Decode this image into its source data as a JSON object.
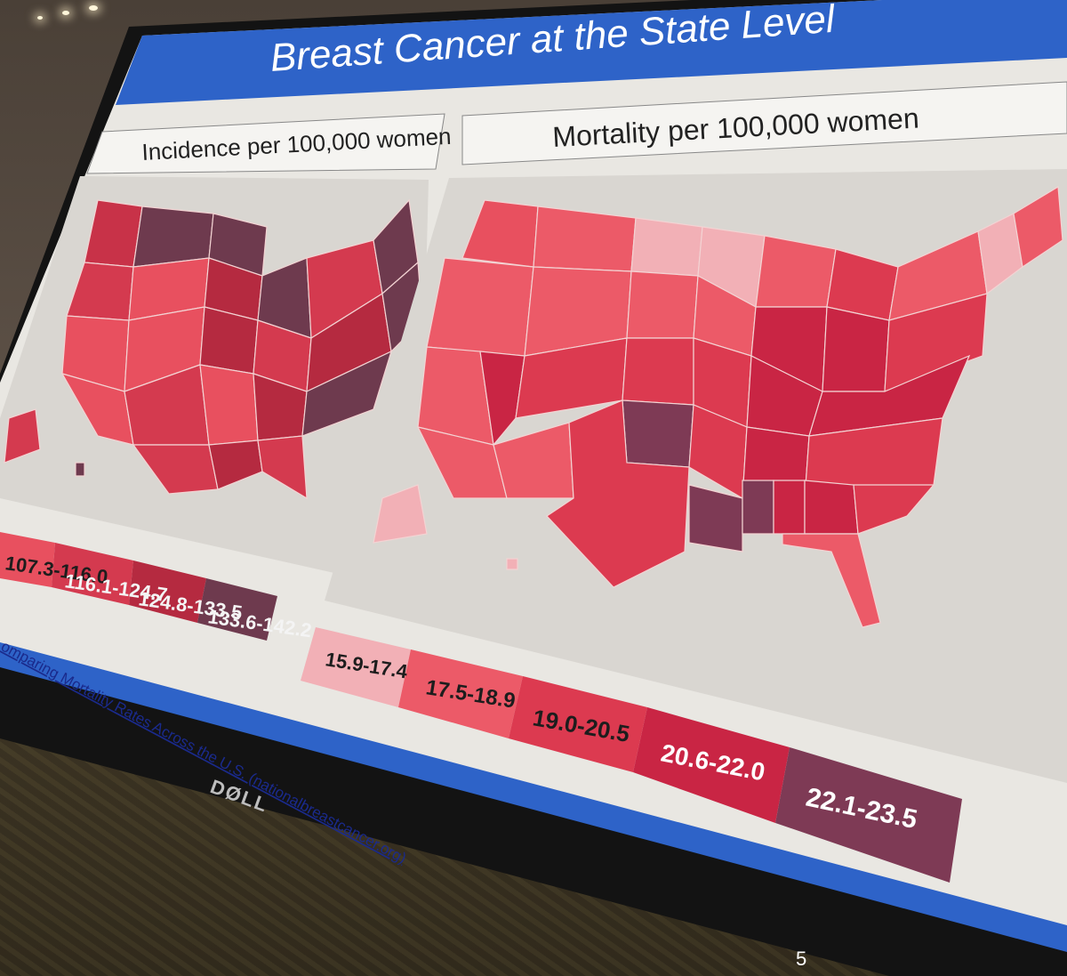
{
  "slide": {
    "title": "Breast Cancer at the State Level",
    "page_number": "5",
    "source_link": "omparing Mortality Rates Across the U.S. (nationalbreastcancer.org)"
  },
  "monitor": {
    "brand": "DØLL"
  },
  "incidence_map": {
    "title": "Incidence per 100,000 women",
    "legend": [
      {
        "label": "107.3-116.0",
        "color": "#e8505f"
      },
      {
        "label": "116.1-124.7",
        "color": "#d43a4f"
      },
      {
        "label": "124.8-133.5",
        "color": "#b52a40"
      },
      {
        "label": "133.6-142.2",
        "color": "#6e3a4e"
      }
    ]
  },
  "mortality_map": {
    "title": "Mortality per 100,000 women",
    "legend": [
      {
        "label": "15.9-17.4",
        "color": "#f2b0b6"
      },
      {
        "label": "17.5-18.9",
        "color": "#ec5a68"
      },
      {
        "label": "19.0-20.5",
        "color": "#dc3a50"
      },
      {
        "label": "20.6-22.0",
        "color": "#c92544"
      },
      {
        "label": "22.1-23.5",
        "color": "#7e3a55"
      }
    ]
  },
  "colors": {
    "header": "#2e63c8",
    "screen": "#e9e7e2",
    "map_panel": "#d9d6d1"
  }
}
